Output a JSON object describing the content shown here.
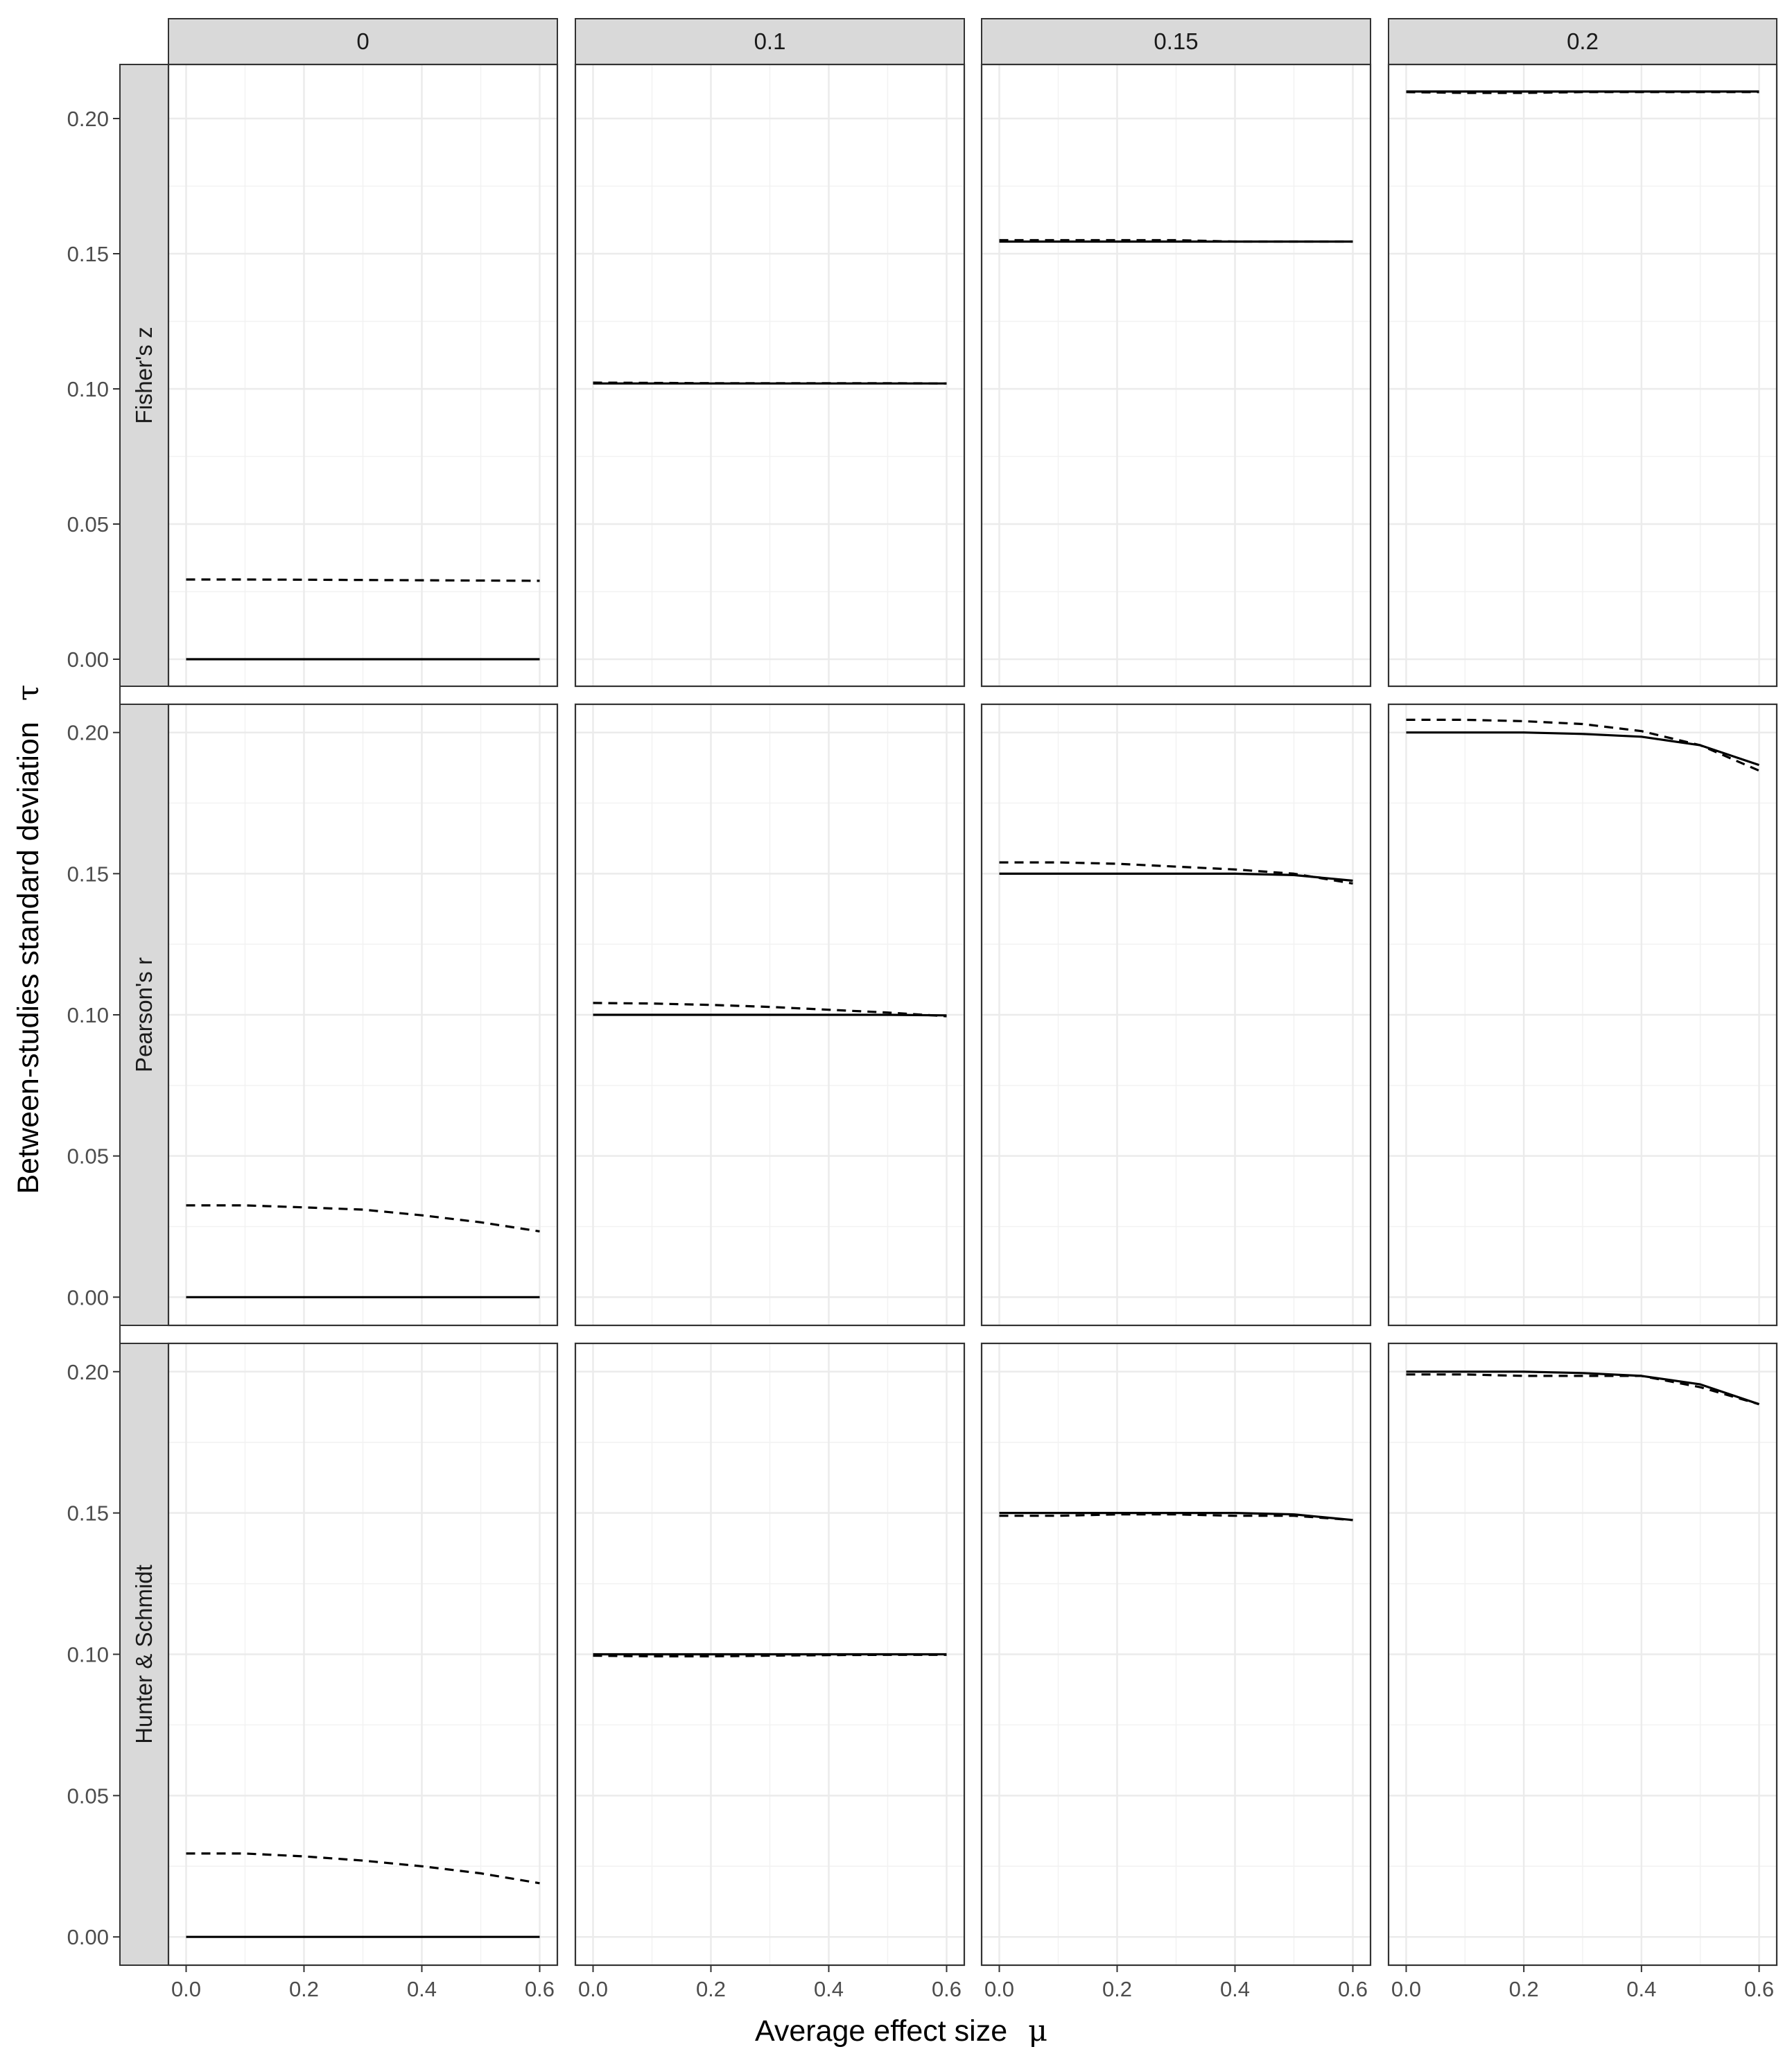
{
  "chart_data": {
    "type": "line",
    "xlabel": "Average effect size",
    "xlabel_symbol": "μ",
    "ylabel": "Between-studies standard deviation",
    "ylabel_symbol": "τ",
    "xlim": [
      -0.03,
      0.63
    ],
    "x_ticks": [
      "0.0",
      "0.2",
      "0.4",
      "0.6"
    ],
    "x_tick_values": [
      0,
      0.2,
      0.4,
      0.6
    ],
    "y_ticks": [
      "0.00",
      "0.05",
      "0.10",
      "0.15",
      "0.20"
    ],
    "y_tick_values": [
      0,
      0.05,
      0.1,
      0.15,
      0.2
    ],
    "grid": true,
    "legend": "none",
    "columns": [
      "0",
      "0.1",
      "0.15",
      "0.2"
    ],
    "rows": [
      {
        "label": "Fisher's z",
        "ylim": [
          -0.01,
          0.22
        ],
        "panels": [
          {
            "x": [
              0,
              0.1,
              0.2,
              0.3,
              0.4,
              0.5,
              0.6
            ],
            "solid": [
              0,
              0,
              0,
              0,
              0,
              0,
              0
            ],
            "dashed": [
              0.0295,
              0.0295,
              0.0294,
              0.0293,
              0.0292,
              0.0291,
              0.029
            ]
          },
          {
            "x": [
              0,
              0.1,
              0.2,
              0.3,
              0.4,
              0.5,
              0.6
            ],
            "solid": [
              0.102,
              0.102,
              0.102,
              0.102,
              0.102,
              0.102,
              0.102
            ],
            "dashed": [
              0.1023,
              0.1022,
              0.1021,
              0.1021,
              0.1021,
              0.1021,
              0.102
            ]
          },
          {
            "x": [
              0,
              0.1,
              0.2,
              0.3,
              0.4,
              0.5,
              0.6
            ],
            "solid": [
              0.1545,
              0.1545,
              0.1545,
              0.1545,
              0.1545,
              0.1545,
              0.1545
            ],
            "dashed": [
              0.155,
              0.155,
              0.155,
              0.155,
              0.1545,
              0.1545,
              0.1545
            ]
          },
          {
            "x": [
              0,
              0.1,
              0.2,
              0.3,
              0.4,
              0.5,
              0.6
            ],
            "solid": [
              0.21,
              0.21,
              0.21,
              0.21,
              0.21,
              0.21,
              0.21
            ],
            "dashed": [
              0.2098,
              0.2095,
              0.2095,
              0.2098,
              0.2098,
              0.2098,
              0.2098
            ]
          }
        ]
      },
      {
        "label": "Pearson's r",
        "ylim": [
          -0.01,
          0.21
        ],
        "panels": [
          {
            "x": [
              0,
              0.1,
              0.2,
              0.3,
              0.4,
              0.5,
              0.6
            ],
            "solid": [
              0,
              0,
              0,
              0,
              0,
              0,
              0
            ],
            "dashed": [
              0.0325,
              0.0325,
              0.0318,
              0.031,
              0.029,
              0.0265,
              0.0233
            ]
          },
          {
            "x": [
              0,
              0.1,
              0.2,
              0.3,
              0.4,
              0.5,
              0.6
            ],
            "solid": [
              0.1,
              0.1,
              0.1,
              0.1,
              0.1,
              0.1,
              0.0998
            ],
            "dashed": [
              0.1042,
              0.104,
              0.1035,
              0.1028,
              0.1018,
              0.1008,
              0.0995
            ]
          },
          {
            "x": [
              0,
              0.1,
              0.2,
              0.3,
              0.4,
              0.5,
              0.6
            ],
            "solid": [
              0.15,
              0.15,
              0.15,
              0.15,
              0.15,
              0.1495,
              0.1475
            ],
            "dashed": [
              0.154,
              0.154,
              0.1535,
              0.1525,
              0.1515,
              0.15,
              0.1465
            ]
          },
          {
            "x": [
              0,
              0.1,
              0.2,
              0.3,
              0.4,
              0.5,
              0.6
            ],
            "solid": [
              0.2,
              0.2,
              0.2,
              0.1995,
              0.1985,
              0.1955,
              0.1885
            ],
            "dashed": [
              0.2045,
              0.2045,
              0.204,
              0.203,
              0.2005,
              0.1955,
              0.1865
            ]
          }
        ]
      },
      {
        "label": "Hunter & Schmidt",
        "ylim": [
          -0.01,
          0.21
        ],
        "panels": [
          {
            "x": [
              0,
              0.1,
              0.2,
              0.3,
              0.4,
              0.5,
              0.6
            ],
            "solid": [
              0,
              0,
              0,
              0,
              0,
              0,
              0
            ],
            "dashed": [
              0.0295,
              0.0295,
              0.0285,
              0.027,
              0.025,
              0.0225,
              0.019
            ]
          },
          {
            "x": [
              0,
              0.1,
              0.2,
              0.3,
              0.4,
              0.5,
              0.6
            ],
            "solid": [
              0.1,
              0.1,
              0.1,
              0.1,
              0.1,
              0.1,
              0.1
            ],
            "dashed": [
              0.0995,
              0.0993,
              0.0993,
              0.0995,
              0.0997,
              0.0998,
              0.0998
            ]
          },
          {
            "x": [
              0,
              0.1,
              0.2,
              0.3,
              0.4,
              0.5,
              0.6
            ],
            "solid": [
              0.15,
              0.15,
              0.15,
              0.15,
              0.15,
              0.1495,
              0.1475
            ],
            "dashed": [
              0.149,
              0.149,
              0.1495,
              0.1495,
              0.149,
              0.149,
              0.1475
            ]
          },
          {
            "x": [
              0,
              0.1,
              0.2,
              0.3,
              0.4,
              0.5,
              0.6
            ],
            "solid": [
              0.2,
              0.2,
              0.2,
              0.1995,
              0.1985,
              0.1955,
              0.1885
            ],
            "dashed": [
              0.199,
              0.199,
              0.1985,
              0.1985,
              0.1985,
              0.1945,
              0.1885
            ]
          }
        ]
      }
    ]
  }
}
